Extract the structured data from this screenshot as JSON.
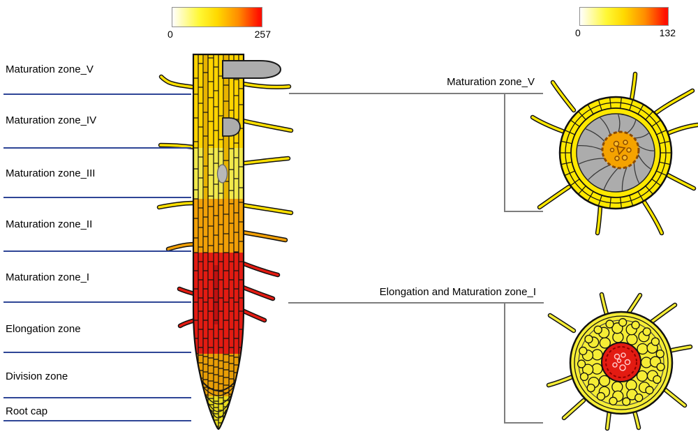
{
  "figure": {
    "scale_left": {
      "min": "0",
      "max": "257"
    },
    "scale_right": {
      "min": "0",
      "max": "132"
    },
    "zones": [
      {
        "label": "Maturation zone_V",
        "color": "#FFD400"
      },
      {
        "label": "Maturation zone_IV",
        "color": "#FFD400"
      },
      {
        "label": "Maturation zone_III",
        "color": "#F1E94C"
      },
      {
        "label": "Maturation zone_II",
        "color": "#F2A007"
      },
      {
        "label": "Maturation zone_I",
        "color": "#E31B12"
      },
      {
        "label": "Elongation zone",
        "color": "#E31B12"
      },
      {
        "label": "Division zone",
        "color": "#E89E06"
      },
      {
        "label": "Root cap",
        "color": "#E8DC1E"
      }
    ],
    "cross_sections": {
      "top": {
        "label": "Maturation zone_V"
      },
      "bottom": {
        "label": "Elongation and Maturation zone_I"
      }
    },
    "heat_colors": {
      "low": "#FFFFFF",
      "mid": "#FFE900",
      "high": "#FF0000"
    },
    "structure_colors": {
      "primordium_gray": "#ACACAC",
      "cortex_gray": "#ACACAC",
      "stele_top": "#F5A300",
      "stele_bottom": "#E31B12",
      "divider_blue": "#2e4596",
      "bracket_gray": "#7d7d7d"
    }
  }
}
